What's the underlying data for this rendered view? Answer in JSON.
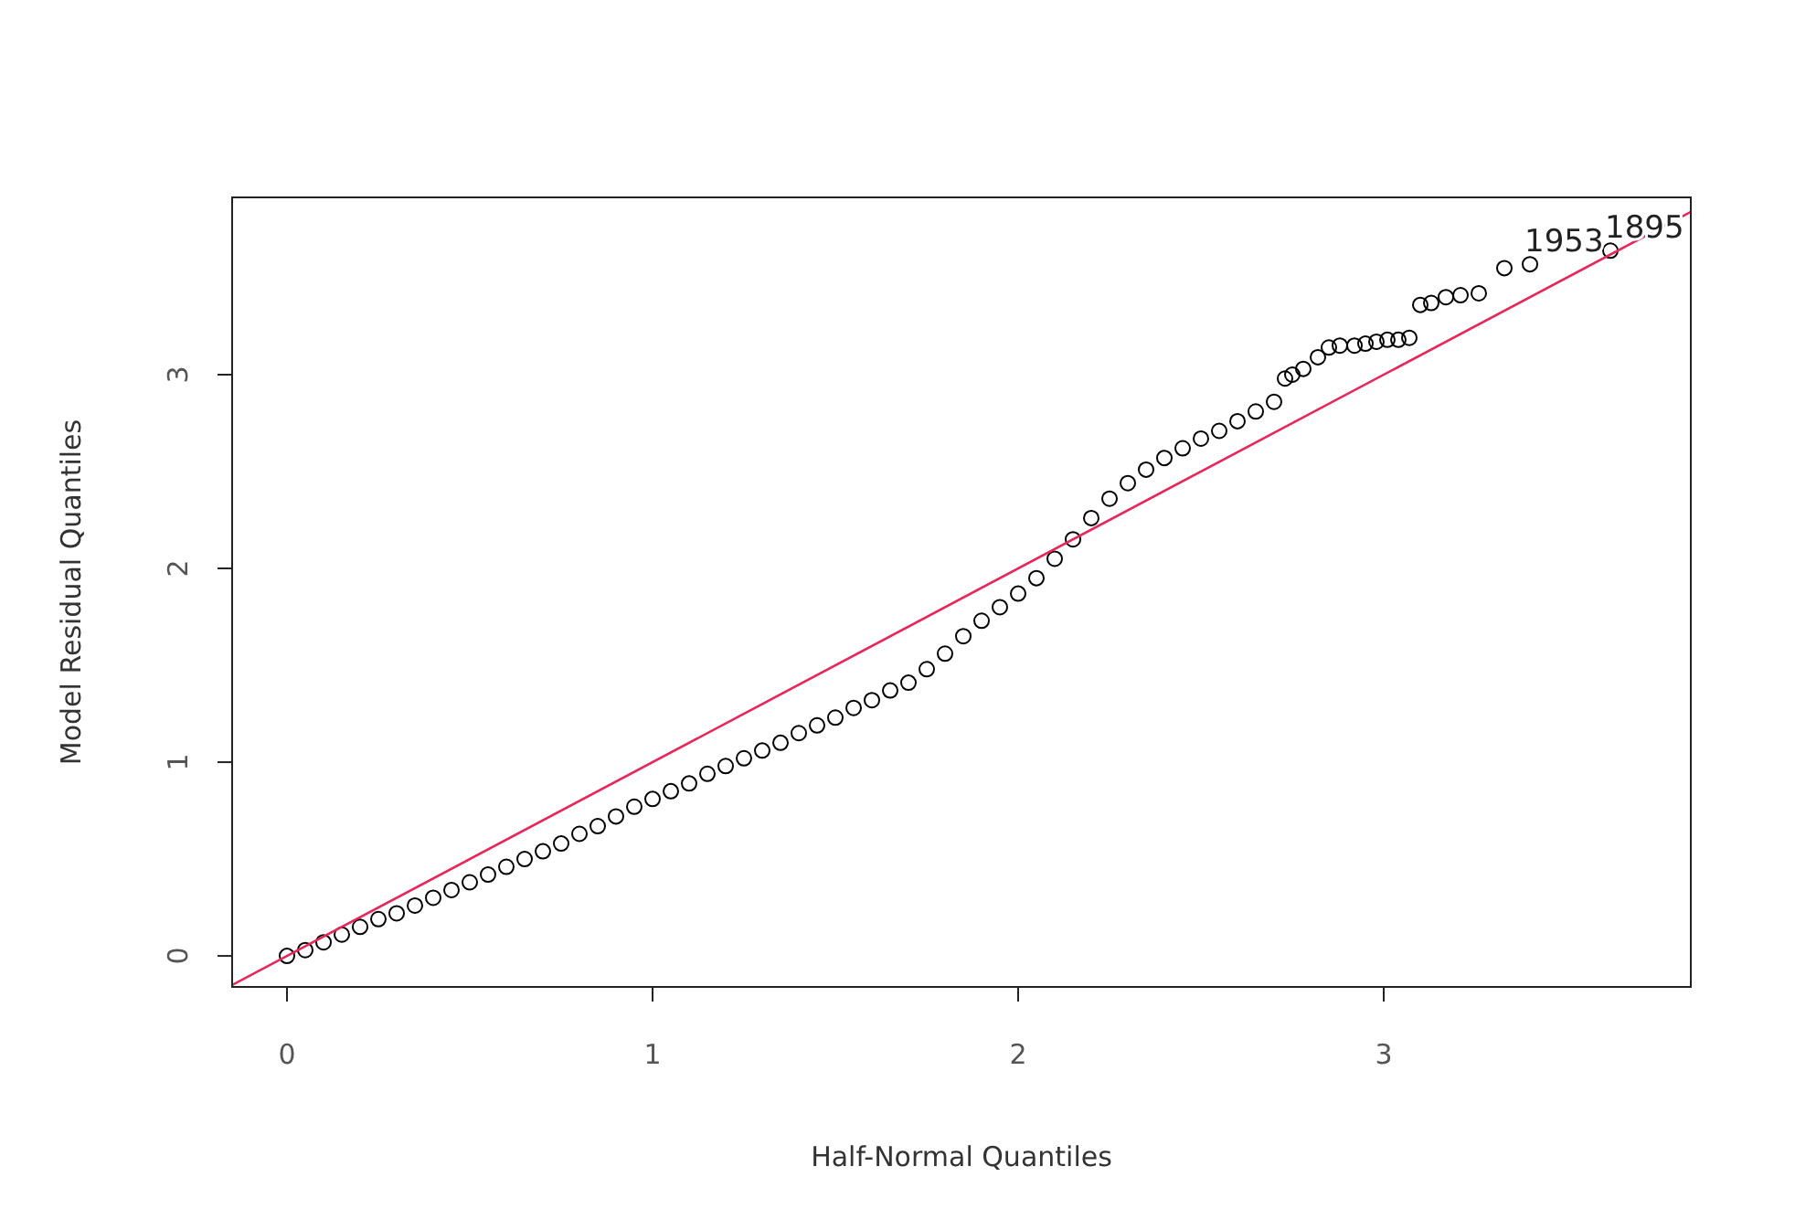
{
  "chart_data": {
    "type": "scatter",
    "xlabel": "Half-Normal Quantiles",
    "ylabel": "Model Residual Quantiles",
    "xlim": [
      -0.15,
      3.84
    ],
    "ylim": [
      -0.16,
      3.915
    ],
    "xticks": [
      0,
      1,
      2,
      3
    ],
    "yticks": [
      0,
      1,
      2,
      3
    ],
    "series": [
      {
        "marker": "circle",
        "color": "#000000",
        "x": [
          0,
          0.05,
          0.1,
          0.15,
          0.2,
          0.25,
          0.3,
          0.35,
          0.4,
          0.45,
          0.5,
          0.55,
          0.6,
          0.65,
          0.7,
          0.75,
          0.8,
          0.85,
          0.9,
          0.95,
          1.0,
          1.05,
          1.1,
          1.15,
          1.2,
          1.25,
          1.3,
          1.35,
          1.4,
          1.45,
          1.5,
          1.55,
          1.6,
          1.65,
          1.7,
          1.75,
          1.8,
          1.85,
          1.9,
          1.95,
          2.0,
          2.05,
          2.1,
          2.15,
          2.2,
          2.25,
          2.3,
          2.35,
          2.4,
          2.45,
          2.5,
          2.55,
          2.6,
          2.65,
          2.7,
          2.73,
          2.75,
          2.78,
          2.82,
          2.85,
          2.88,
          2.92,
          2.95,
          2.98,
          3.01,
          3.04,
          3.07,
          3.1,
          3.13,
          3.17,
          3.21,
          3.26,
          3.33,
          3.4,
          3.62
        ],
        "values": [
          0,
          0.03,
          0.07,
          0.11,
          0.15,
          0.19,
          0.22,
          0.26,
          0.3,
          0.34,
          0.38,
          0.42,
          0.46,
          0.5,
          0.54,
          0.58,
          0.63,
          0.67,
          0.72,
          0.77,
          0.81,
          0.85,
          0.89,
          0.94,
          0.98,
          1.02,
          1.06,
          1.1,
          1.15,
          1.19,
          1.23,
          1.28,
          1.32,
          1.37,
          1.41,
          1.48,
          1.56,
          1.65,
          1.73,
          1.8,
          1.87,
          1.95,
          2.05,
          2.15,
          2.26,
          2.36,
          2.44,
          2.51,
          2.57,
          2.62,
          2.67,
          2.71,
          2.76,
          2.81,
          2.86,
          2.98,
          3.0,
          3.03,
          3.09,
          3.14,
          3.15,
          3.15,
          3.16,
          3.17,
          3.18,
          3.18,
          3.19,
          3.36,
          3.37,
          3.4,
          3.41,
          3.42,
          3.55,
          3.57,
          3.64
        ]
      },
      {
        "type": "line",
        "color": "#e8265a",
        "x": [
          -0.15,
          3.84
        ],
        "values": [
          -0.15,
          3.84
        ]
      }
    ],
    "annotations": [
      {
        "text": "1953",
        "x": 3.4,
        "y": 3.57
      },
      {
        "text": "1895",
        "x": 3.62,
        "y": 3.64
      }
    ]
  }
}
